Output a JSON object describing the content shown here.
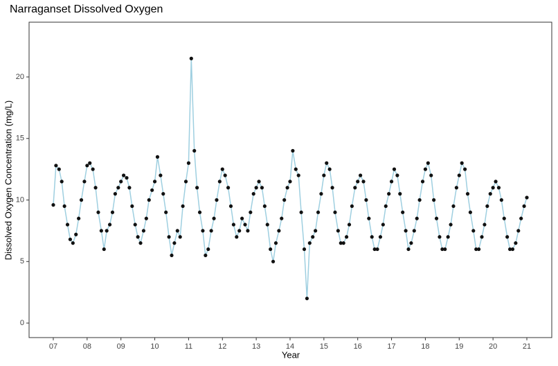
{
  "chart_data": {
    "type": "line",
    "title": "Narraganset Dissolved Oxygen",
    "x_label": "Year",
    "y_label": "Dissolved Oxygen Concentration (mg/L)",
    "xlim": [
      6.284,
      21.737
    ],
    "ylim": [
      -1.18,
      24.45
    ],
    "xticks": [
      {
        "value": 7,
        "label": "07"
      },
      {
        "value": 8,
        "label": "08"
      },
      {
        "value": 9,
        "label": "09"
      },
      {
        "value": 10,
        "label": "10"
      },
      {
        "value": 11,
        "label": "11"
      },
      {
        "value": 12,
        "label": "12"
      },
      {
        "value": 13,
        "label": "13"
      },
      {
        "value": 14,
        "label": "14"
      },
      {
        "value": 15,
        "label": "15"
      },
      {
        "value": 16,
        "label": "16"
      },
      {
        "value": 17,
        "label": "17"
      },
      {
        "value": 18,
        "label": "18"
      },
      {
        "value": 19,
        "label": "19"
      },
      {
        "value": 20,
        "label": "20"
      },
      {
        "value": 21,
        "label": "21"
      }
    ],
    "yticks": [
      0,
      5,
      10,
      15,
      20
    ],
    "line_color": "#9ecfe0",
    "point_color": "#111111",
    "x": [
      7.0,
      7.08,
      7.17,
      7.25,
      7.33,
      7.42,
      7.5,
      7.58,
      7.67,
      7.75,
      7.83,
      7.92,
      8.0,
      8.08,
      8.17,
      8.25,
      8.33,
      8.42,
      8.5,
      8.58,
      8.67,
      8.75,
      8.83,
      8.92,
      9.0,
      9.08,
      9.17,
      9.25,
      9.33,
      9.42,
      9.5,
      9.58,
      9.67,
      9.75,
      9.83,
      9.92,
      10.0,
      10.08,
      10.17,
      10.25,
      10.33,
      10.42,
      10.5,
      10.58,
      10.67,
      10.75,
      10.83,
      10.92,
      11.0,
      11.08,
      11.17,
      11.25,
      11.33,
      11.42,
      11.5,
      11.58,
      11.67,
      11.75,
      11.83,
      11.92,
      12.0,
      12.08,
      12.17,
      12.25,
      12.33,
      12.42,
      12.5,
      12.58,
      12.67,
      12.75,
      12.83,
      12.92,
      13.0,
      13.08,
      13.17,
      13.25,
      13.33,
      13.42,
      13.5,
      13.58,
      13.67,
      13.75,
      13.83,
      13.92,
      14.0,
      14.08,
      14.17,
      14.25,
      14.33,
      14.42,
      14.5,
      14.58,
      14.67,
      14.75,
      14.83,
      14.92,
      15.0,
      15.08,
      15.17,
      15.25,
      15.33,
      15.42,
      15.5,
      15.58,
      15.67,
      15.75,
      15.83,
      15.92,
      16.0,
      16.08,
      16.17,
      16.25,
      16.33,
      16.42,
      16.5,
      16.58,
      16.67,
      16.75,
      16.83,
      16.92,
      17.0,
      17.08,
      17.17,
      17.25,
      17.33,
      17.42,
      17.5,
      17.58,
      17.67,
      17.75,
      17.83,
      17.92,
      18.0,
      18.08,
      18.17,
      18.25,
      18.33,
      18.42,
      18.5,
      18.58,
      18.67,
      18.75,
      18.83,
      18.92,
      19.0,
      19.08,
      19.17,
      19.25,
      19.33,
      19.42,
      19.5,
      19.58,
      19.67,
      19.75,
      19.83,
      19.92,
      20.0,
      20.08,
      20.17,
      20.25,
      20.33,
      20.42,
      20.5,
      20.58,
      20.67,
      20.75,
      20.83,
      20.92,
      21.0
    ],
    "values": [
      9.6,
      12.8,
      12.5,
      11.5,
      9.5,
      8,
      6.8,
      6.5,
      7.2,
      8.5,
      10,
      11.5,
      12.8,
      13,
      12.5,
      11,
      9,
      7.5,
      6,
      7.5,
      8,
      9,
      10.5,
      11,
      11.5,
      12,
      11.8,
      11,
      9.5,
      8,
      7,
      6.5,
      7.5,
      8.5,
      10,
      10.8,
      11.5,
      13.5,
      12,
      10.5,
      9,
      7,
      5.5,
      6.5,
      7.5,
      7,
      9.5,
      11.5,
      13,
      21.5,
      14,
      11,
      9,
      7.5,
      5.5,
      6,
      7.5,
      8.5,
      10,
      11.5,
      12.5,
      12,
      11,
      9.5,
      8,
      7,
      7.5,
      8.5,
      8,
      7.5,
      9,
      10.5,
      11,
      11.5,
      11,
      9.5,
      8,
      6,
      5,
      6.5,
      7.5,
      8.5,
      10,
      11,
      11.5,
      14,
      12.5,
      12,
      9,
      6,
      2,
      6.5,
      7,
      7.5,
      9,
      10.5,
      12,
      13,
      12.5,
      11,
      9,
      7.5,
      6.5,
      6.5,
      7,
      8,
      9.5,
      11,
      11.5,
      12,
      11.5,
      10,
      8.5,
      7,
      6,
      6,
      7,
      8,
      9.5,
      10.5,
      11.5,
      12.5,
      12,
      10.5,
      9,
      7.5,
      6,
      6.5,
      7.5,
      8.5,
      10,
      11.5,
      12.5,
      13,
      12,
      10,
      8.5,
      7,
      6,
      6,
      7,
      8,
      9.5,
      11,
      12,
      13,
      12.5,
      10.5,
      9,
      7.5,
      6,
      6,
      7,
      8,
      9.5,
      10.5,
      11,
      11.5,
      11,
      10,
      8.5,
      7,
      6,
      6,
      6.5,
      7.5,
      8.5,
      9.5,
      10.2
    ]
  }
}
